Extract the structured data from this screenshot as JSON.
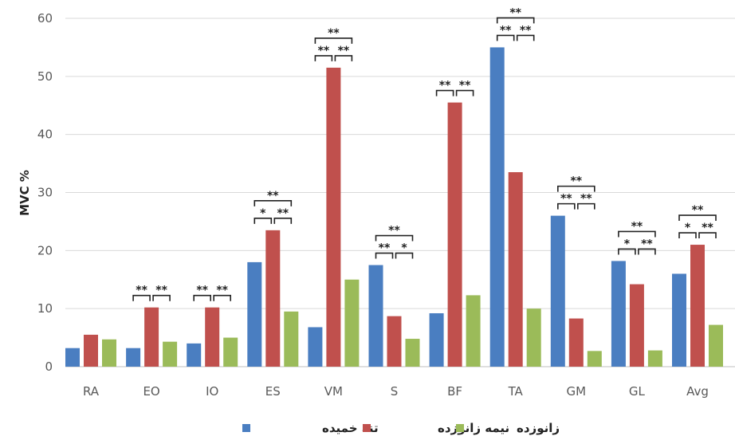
{
  "chart_data": {
    "type": "bar",
    "title": "",
    "xlabel": "",
    "ylabel": "MVC %",
    "ylim": [
      0,
      60
    ],
    "yticks": [
      0,
      10,
      20,
      30,
      40,
      50,
      60
    ],
    "grid": true,
    "legend_position": "bottom",
    "categories": [
      "RA",
      "EO",
      "IO",
      "ES",
      "VM",
      "S",
      "BF",
      "TA",
      "GM",
      "GL",
      "Avg"
    ],
    "series": [
      {
        "name": "تنه خمیده",
        "color": "#4A7EC1",
        "values": [
          3.2,
          3.2,
          4.0,
          18.0,
          6.8,
          17.5,
          9.2,
          55.0,
          26.0,
          18.2,
          16.0
        ]
      },
      {
        "name": "نیمه زانوزده",
        "color": "#C0504D",
        "values": [
          5.5,
          10.2,
          10.2,
          23.5,
          51.5,
          8.7,
          45.5,
          33.5,
          8.3,
          14.2,
          21.0
        ]
      },
      {
        "name": "زانوزده",
        "color": "#9BBB59",
        "values": [
          4.7,
          4.3,
          5.0,
          9.5,
          15.0,
          4.8,
          12.3,
          10.0,
          2.7,
          2.8,
          7.2
        ]
      }
    ],
    "significance": [
      {
        "category": "EO",
        "ab": "**",
        "bc": "**"
      },
      {
        "category": "IO",
        "ab": "**",
        "bc": "**"
      },
      {
        "category": "ES",
        "ab": "*",
        "bc": "**",
        "ac": "**"
      },
      {
        "category": "VM",
        "ab": "**",
        "bc": "**",
        "ac": "**"
      },
      {
        "category": "S",
        "ab": "**",
        "bc": "*",
        "ac": "**"
      },
      {
        "category": "BF",
        "ab": "**",
        "bc": "**"
      },
      {
        "category": "TA",
        "ab": "**",
        "bc": "**",
        "ac": "**"
      },
      {
        "category": "GM",
        "ab": "**",
        "bc": "**",
        "ac": "**"
      },
      {
        "category": "GL",
        "ab": "*",
        "bc": "**",
        "ac": "**"
      },
      {
        "category": "Avg",
        "ab": "*",
        "bc": "**",
        "ac": "**"
      }
    ]
  }
}
